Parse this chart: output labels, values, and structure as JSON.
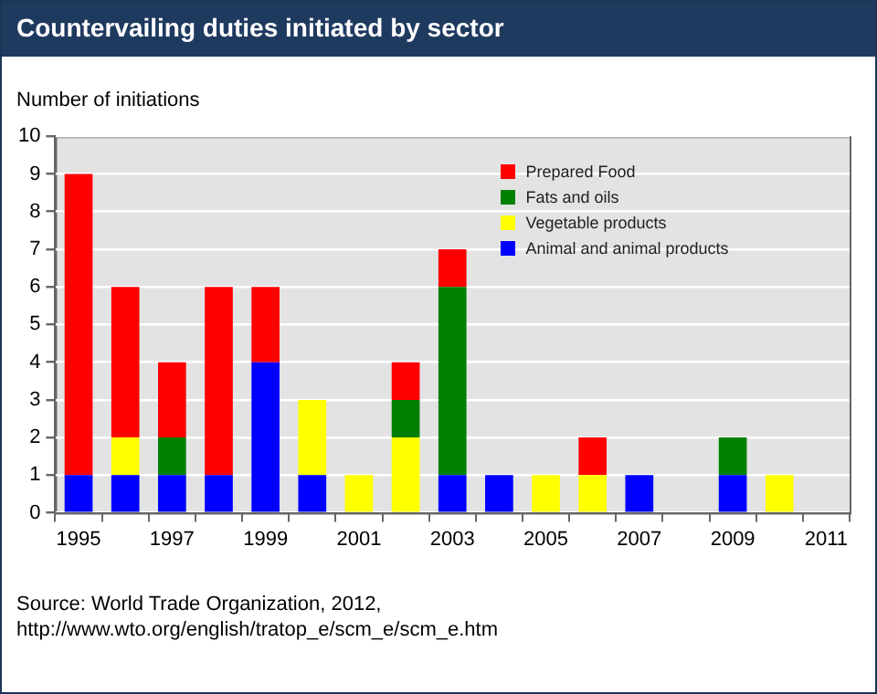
{
  "chart_data": {
    "type": "bar",
    "title": "Countervailing duties initiated by sector",
    "ylabel": "Number of initiations",
    "categories": [
      "1995",
      null,
      "1997",
      null,
      "1999",
      null,
      "2001",
      null,
      "2003",
      null,
      "2005",
      null,
      "2007",
      null,
      "2009",
      null,
      "2011"
    ],
    "series": [
      {
        "name": "Animal and animal products",
        "color": "#0000ff",
        "values": [
          1,
          1,
          1,
          1,
          4,
          1,
          0,
          0,
          1,
          1,
          0,
          0,
          1,
          0,
          1,
          0,
          0
        ]
      },
      {
        "name": "Vegetable products",
        "color": "#ffff00",
        "values": [
          0,
          1,
          0,
          0,
          0,
          2,
          1,
          2,
          0,
          0,
          1,
          1,
          0,
          0,
          0,
          1,
          0
        ]
      },
      {
        "name": "Fats and oils",
        "color": "#008000",
        "values": [
          0,
          0,
          1,
          0,
          0,
          0,
          0,
          1,
          5,
          0,
          0,
          0,
          0,
          0,
          1,
          0,
          0
        ]
      },
      {
        "name": "Prepared Food",
        "color": "#ff0000",
        "values": [
          8,
          4,
          2,
          5,
          2,
          0,
          0,
          1,
          1,
          0,
          0,
          1,
          0,
          0,
          0,
          0,
          0
        ]
      }
    ],
    "stacked": true,
    "ylim": [
      0,
      10
    ],
    "yticks": [
      0,
      1,
      2,
      3,
      4,
      5,
      6,
      7,
      8,
      9,
      10
    ],
    "grid": "y",
    "legend": "top right",
    "annotations": [
      "Source: World Trade Organization, 2012,\nhttp://www.wto.org/english/tratop_e/scm_e/scm_e.htm"
    ]
  }
}
